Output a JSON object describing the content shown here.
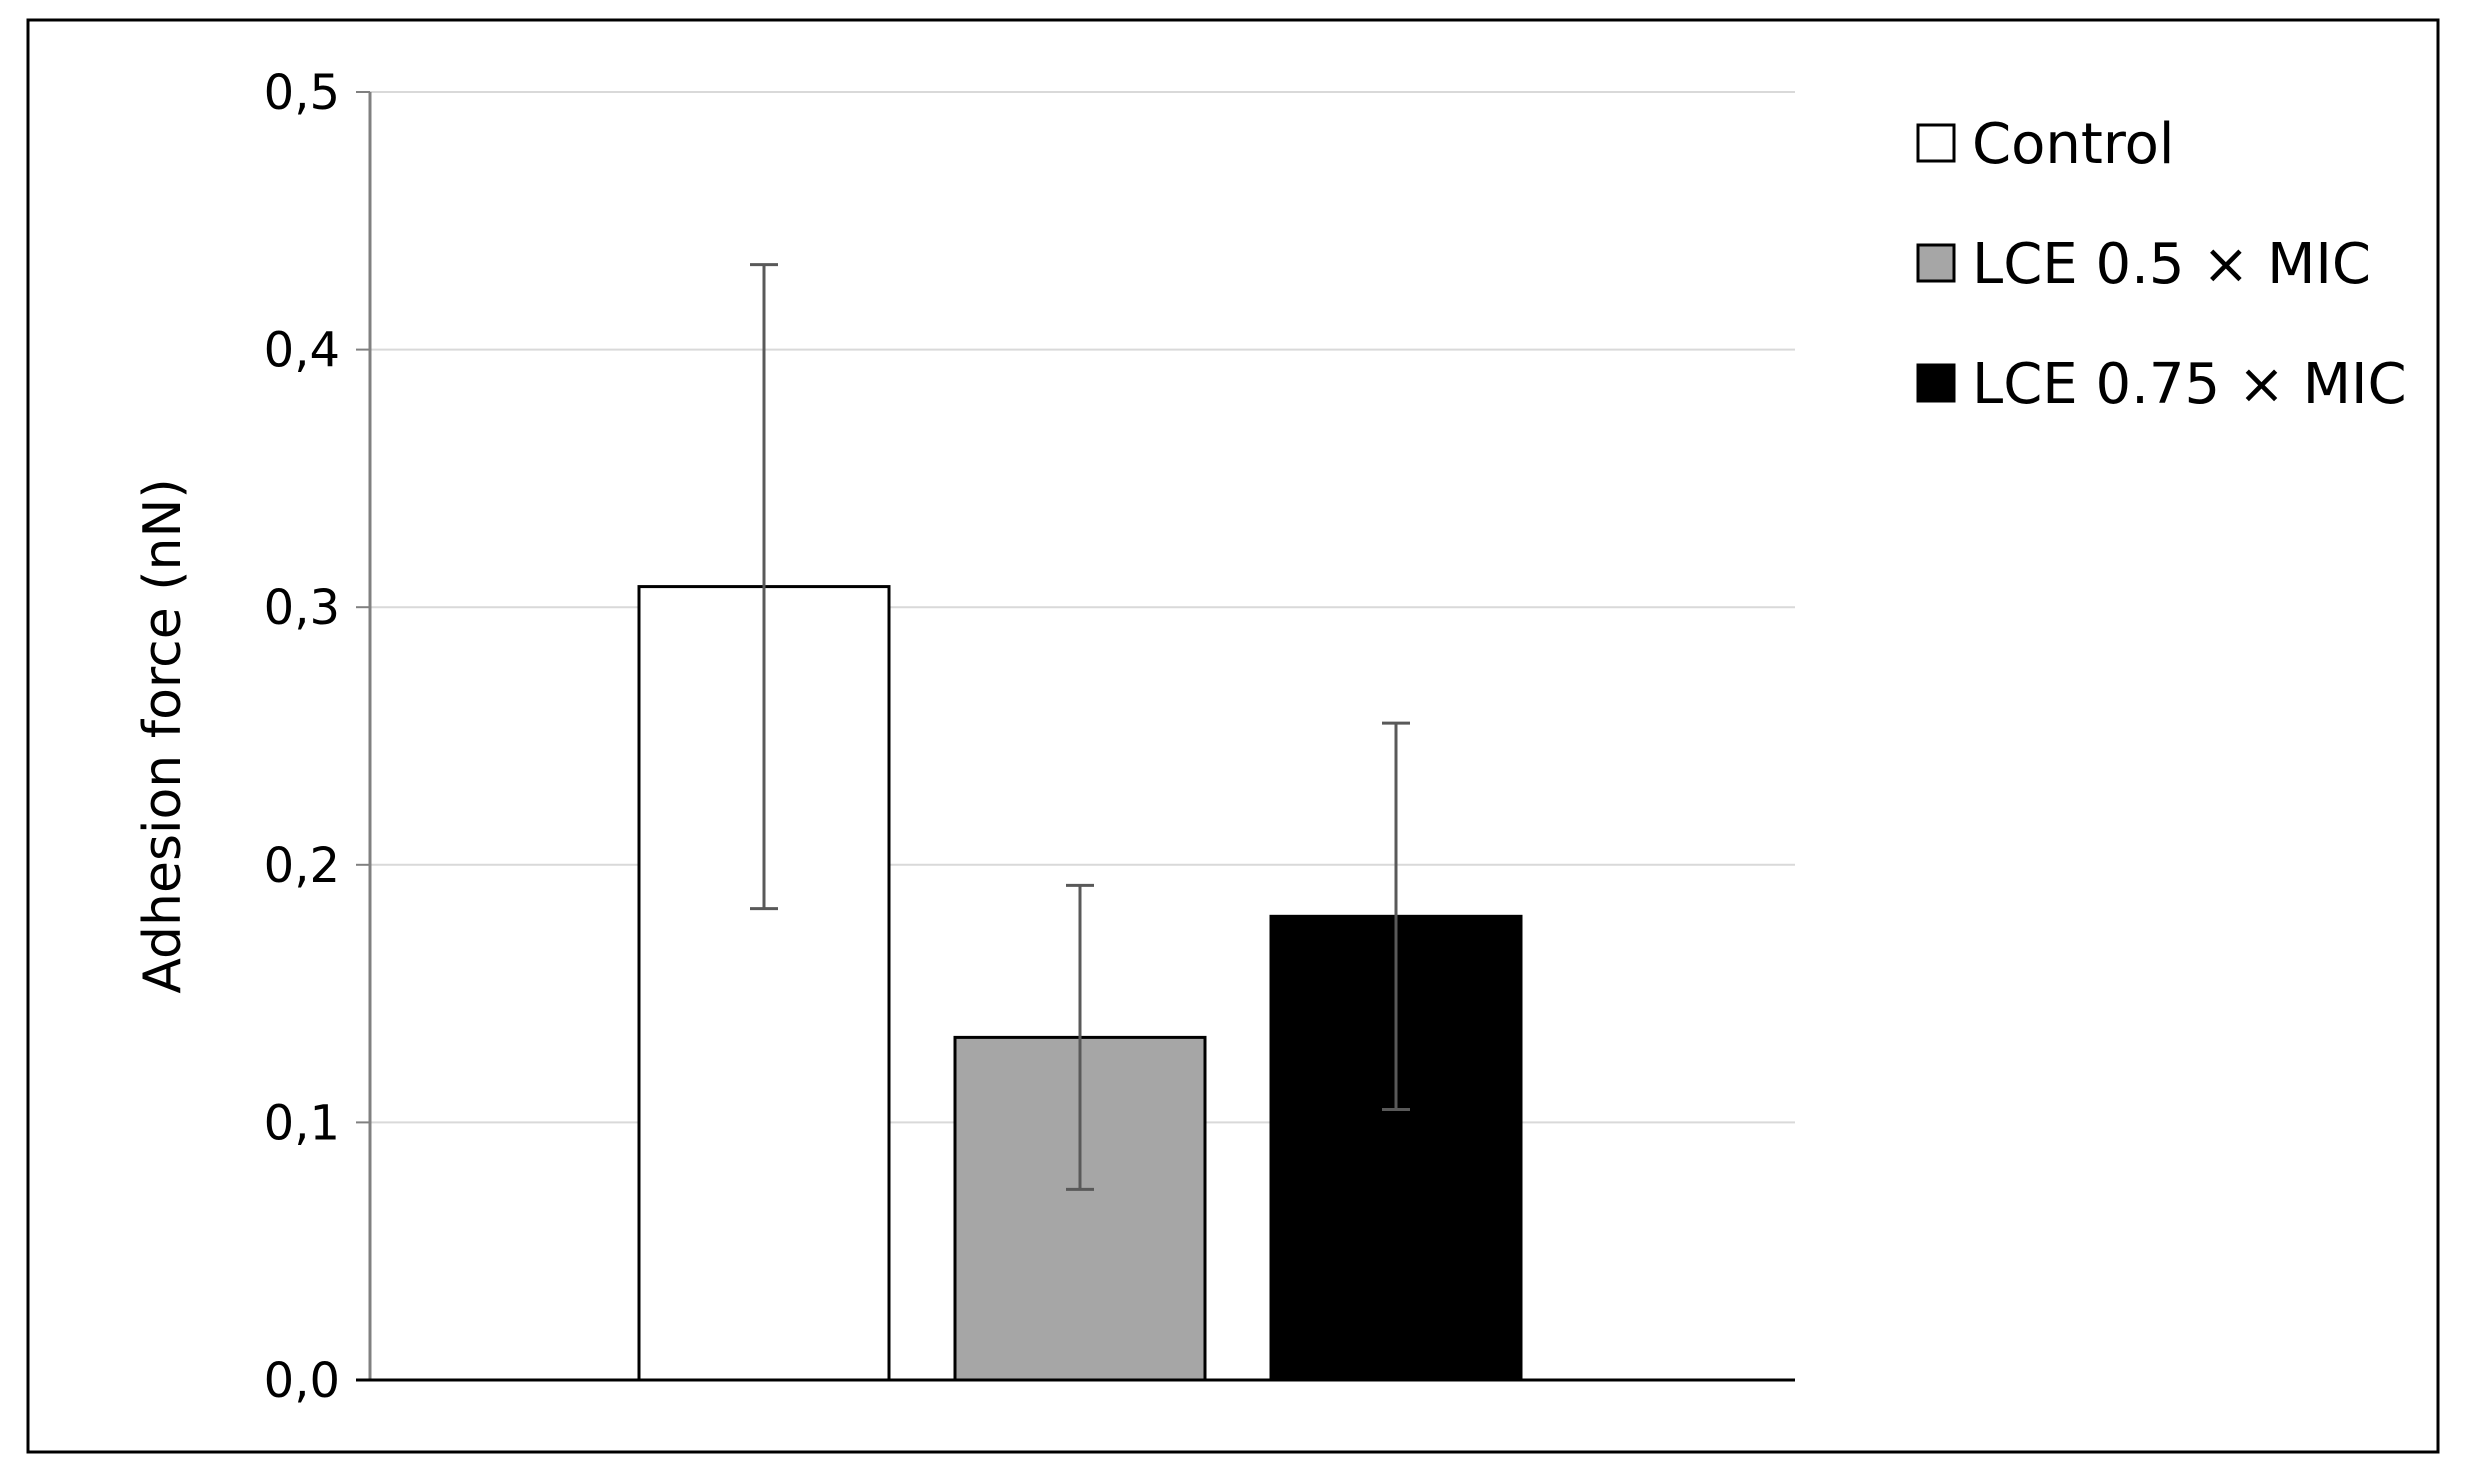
{
  "chart_data": {
    "type": "bar",
    "title": "",
    "xlabel": "",
    "ylabel": "Adhesion force (nN)",
    "ylim": [
      0,
      0.5
    ],
    "yticks": [
      {
        "value": 0.0,
        "label": "0,0"
      },
      {
        "value": 0.1,
        "label": "0,1"
      },
      {
        "value": 0.2,
        "label": "0,2"
      },
      {
        "value": 0.3,
        "label": "0,3"
      },
      {
        "value": 0.4,
        "label": "0,4"
      },
      {
        "value": 0.5,
        "label": "0,5"
      }
    ],
    "grid": true,
    "legend_position": "right",
    "series": [
      {
        "name": "Control",
        "value": 0.308,
        "error": 0.125,
        "color": "#ffffff"
      },
      {
        "name": "LCE 0.5 × MIC",
        "value": 0.133,
        "error": 0.059,
        "color": "#a6a6a6"
      },
      {
        "name": "LCE 0.75 × MIC",
        "value": 0.18,
        "error": 0.075,
        "color": "#000000"
      }
    ]
  }
}
